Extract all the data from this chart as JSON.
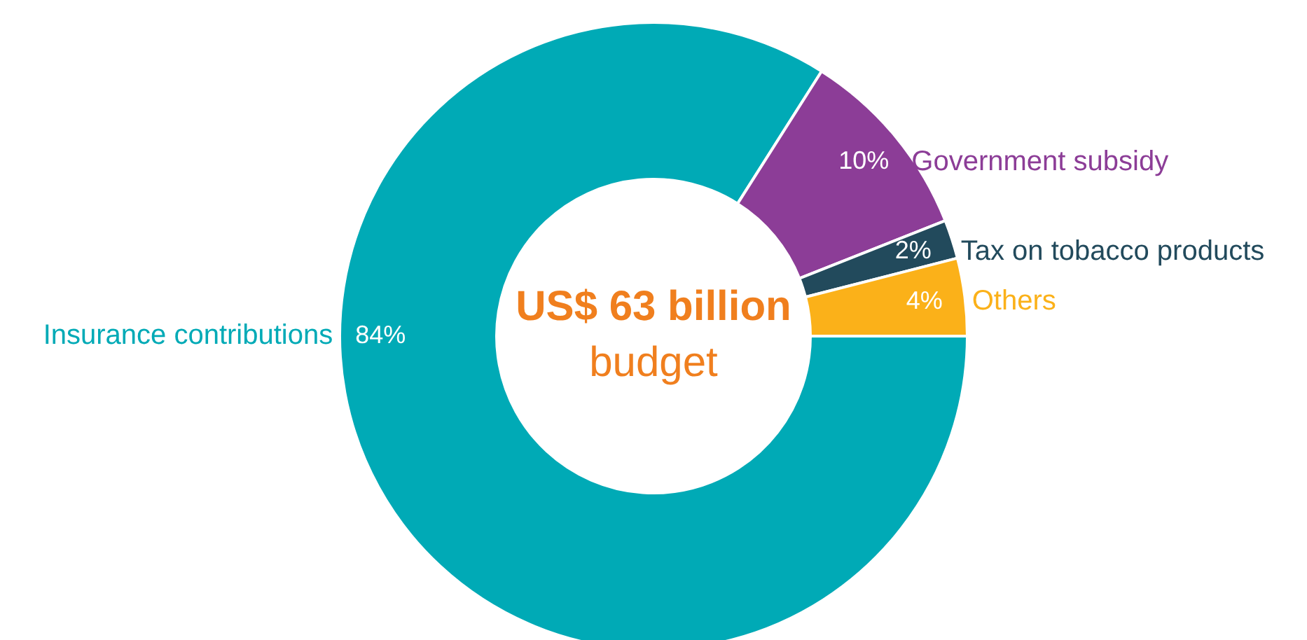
{
  "chart_data": {
    "type": "donut",
    "categories": [
      "Insurance contributions",
      "Government subsidy",
      "Tax on tobacco products",
      "Others"
    ],
    "values": [
      84,
      10,
      2,
      4
    ],
    "value_labels": [
      "84%",
      "10%",
      "2%",
      "4%"
    ],
    "colors": [
      "#00aab6",
      "#8c3d97",
      "#224a5c",
      "#fbb119"
    ],
    "legend": false,
    "annotations": [
      "US$ 63 billion",
      "budget"
    ]
  }
}
